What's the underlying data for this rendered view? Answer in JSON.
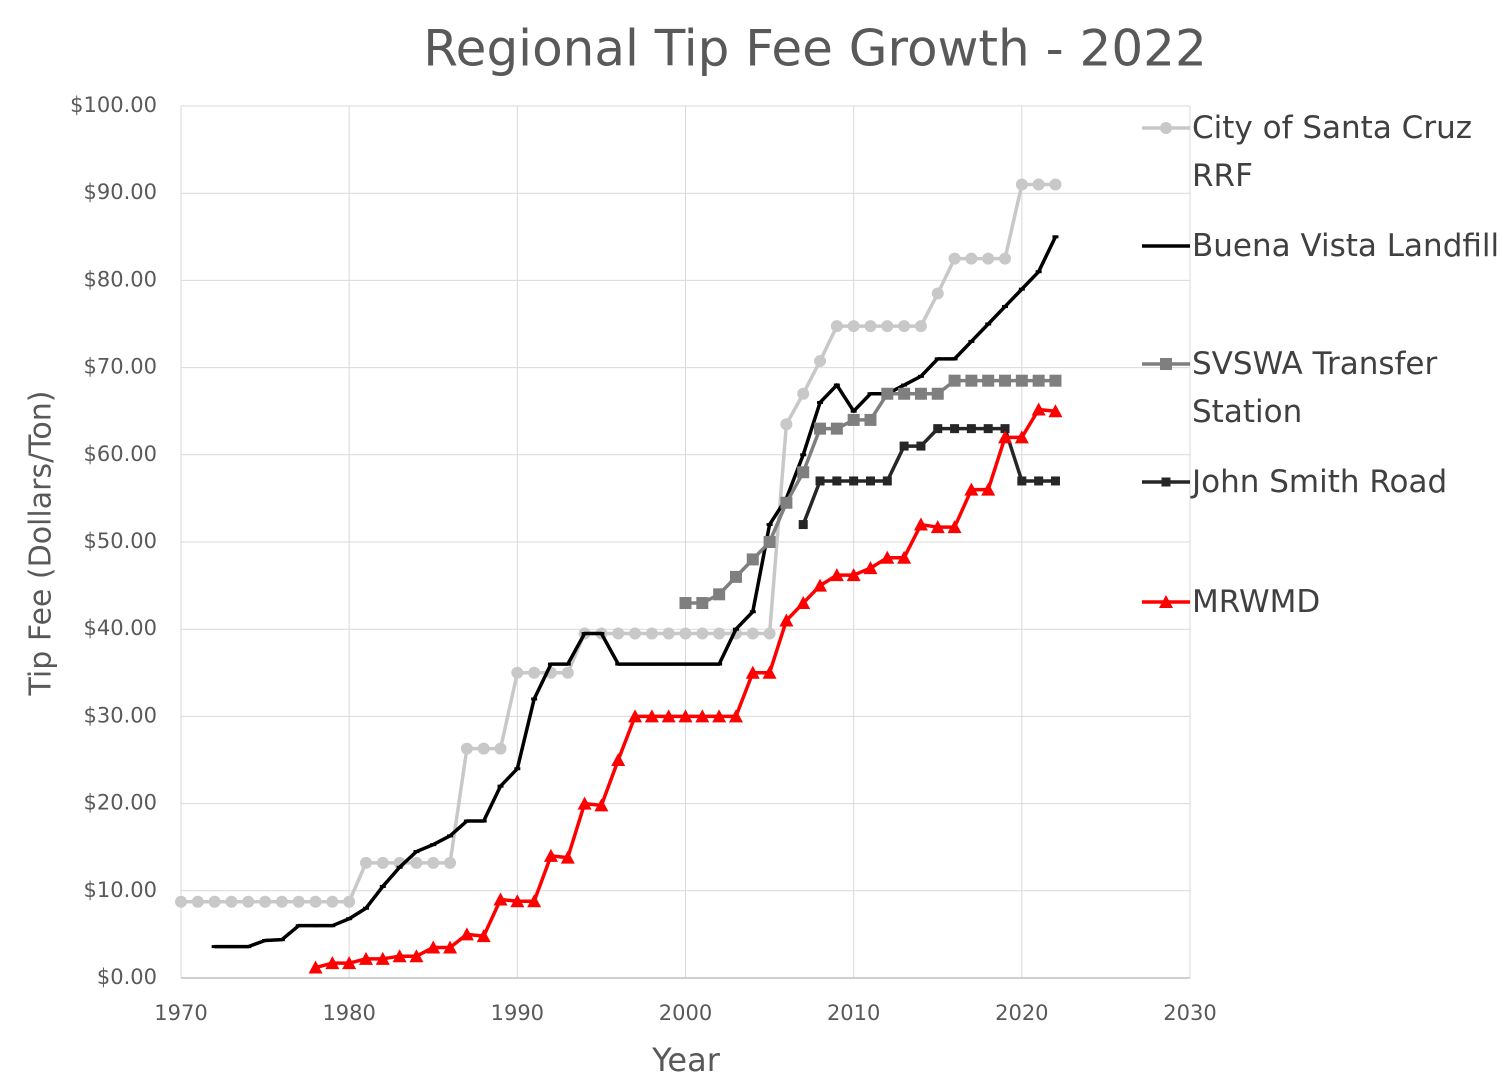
{
  "chart_data": {
    "type": "line",
    "title": "Regional Tip Fee Growth - 2022",
    "xlabel": "Year",
    "ylabel": "Tip Fee (Dollars/Ton)",
    "xlim": [
      1970,
      2030
    ],
    "xticks": [
      1970,
      1980,
      1990,
      2000,
      2010,
      2020,
      2030
    ],
    "ylim": [
      0,
      100
    ],
    "yticks": [
      {
        "value": 0,
        "label": "$0.00"
      },
      {
        "value": 10,
        "label": "$10.00"
      },
      {
        "value": 20,
        "label": "$20.00"
      },
      {
        "value": 30,
        "label": "$30.00"
      },
      {
        "value": 40,
        "label": "$40.00"
      },
      {
        "value": 50,
        "label": "$50.00"
      },
      {
        "value": 60,
        "label": "$60.00"
      },
      {
        "value": 70,
        "label": "$70.00"
      },
      {
        "value": 80,
        "label": "$80.00"
      },
      {
        "value": 90,
        "label": "$90.00"
      },
      {
        "value": 100,
        "label": "$100.00"
      }
    ],
    "grid": true,
    "legend": "right",
    "series": [
      {
        "name": "City of Santa Cruz RRF",
        "color": "#c8c8c8",
        "marker": "circle",
        "x": [
          1970,
          1971,
          1972,
          1973,
          1974,
          1975,
          1976,
          1977,
          1978,
          1979,
          1980,
          1981,
          1982,
          1983,
          1984,
          1985,
          1986,
          1987,
          1988,
          1989,
          1990,
          1991,
          1992,
          1993,
          1994,
          1995,
          1996,
          1997,
          1998,
          1999,
          2000,
          2001,
          2002,
          2003,
          2004,
          2005,
          2006,
          2007,
          2008,
          2009,
          2010,
          2011,
          2012,
          2013,
          2014,
          2015,
          2016,
          2017,
          2018,
          2019,
          2020,
          2021,
          2022
        ],
        "values": [
          8.75,
          8.75,
          8.75,
          8.75,
          8.75,
          8.75,
          8.75,
          8.75,
          8.75,
          8.75,
          8.75,
          13.2,
          13.2,
          13.2,
          13.2,
          13.2,
          13.2,
          26.3,
          26.3,
          26.3,
          35,
          35,
          35,
          35,
          39.5,
          39.5,
          39.5,
          39.5,
          39.5,
          39.5,
          39.5,
          39.5,
          39.5,
          39.5,
          39.5,
          39.5,
          63.5,
          67,
          70.75,
          74.75,
          74.75,
          74.75,
          74.75,
          74.75,
          74.75,
          78.5,
          82.5,
          82.5,
          82.5,
          82.5,
          91,
          91,
          91
        ]
      },
      {
        "name": "Buena Vista Landfill",
        "color": "#000000",
        "marker": "dash",
        "x": [
          1972,
          1973,
          1974,
          1975,
          1976,
          1977,
          1978,
          1979,
          1980,
          1981,
          1982,
          1983,
          1984,
          1985,
          1986,
          1987,
          1988,
          1989,
          1990,
          1991,
          1992,
          1993,
          1994,
          1995,
          1996,
          1997,
          1998,
          1999,
          2000,
          2001,
          2002,
          2003,
          2004,
          2005,
          2006,
          2007,
          2008,
          2009,
          2010,
          2011,
          2012,
          2013,
          2014,
          2015,
          2016,
          2017,
          2018,
          2019,
          2020,
          2021,
          2022
        ],
        "values": [
          3.6,
          3.6,
          3.6,
          4.3,
          4.4,
          6,
          6,
          6,
          6.8,
          8,
          10.5,
          12.7,
          14.5,
          15.3,
          16.3,
          18,
          18,
          22,
          24,
          32,
          36,
          36,
          39.5,
          39.5,
          36,
          36,
          36,
          36,
          36,
          36,
          36,
          40,
          42,
          52,
          55,
          60,
          66,
          68,
          65,
          67,
          67,
          68,
          69,
          71,
          71,
          73,
          75,
          77,
          79,
          81,
          85
        ]
      },
      {
        "name": "SVSWA Transfer Station",
        "color": "#7f7f7f",
        "marker": "square",
        "x": [
          2000,
          2001,
          2002,
          2003,
          2004,
          2005,
          2006,
          2007,
          2008,
          2009,
          2010,
          2011,
          2012,
          2013,
          2014,
          2015,
          2016,
          2017,
          2018,
          2019,
          2020,
          2021,
          2022
        ],
        "values": [
          43,
          43,
          44,
          46,
          48,
          50,
          54.5,
          58,
          63,
          63,
          64,
          64,
          67,
          67,
          67,
          67,
          68.5,
          68.5,
          68.5,
          68.5,
          68.5,
          68.5,
          68.5
        ]
      },
      {
        "name": "John Smith Road",
        "color": "#262626",
        "marker": "smallsquare",
        "x": [
          2007,
          2008,
          2009,
          2010,
          2011,
          2012,
          2013,
          2014,
          2015,
          2016,
          2017,
          2018,
          2019,
          2020,
          2021,
          2022
        ],
        "values": [
          52,
          57,
          57,
          57,
          57,
          57,
          61,
          61,
          63,
          63,
          63,
          63,
          63,
          57,
          57,
          57
        ]
      },
      {
        "name": "MRWMD",
        "color": "#ff0000",
        "marker": "triangle",
        "x": [
          1978,
          1979,
          1980,
          1981,
          1982,
          1983,
          1984,
          1985,
          1986,
          1987,
          1988,
          1989,
          1990,
          1991,
          1992,
          1993,
          1994,
          1995,
          1996,
          1997,
          1998,
          1999,
          2000,
          2001,
          2002,
          2003,
          2004,
          2005,
          2006,
          2007,
          2008,
          2009,
          2010,
          2011,
          2012,
          2013,
          2014,
          2015,
          2016,
          2017,
          2018,
          2019,
          2020,
          2021,
          2022
        ],
        "values": [
          1.2,
          1.7,
          1.7,
          2.2,
          2.2,
          2.5,
          2.5,
          3.5,
          3.5,
          5,
          4.8,
          9,
          8.8,
          8.8,
          14,
          13.8,
          20,
          19.8,
          25,
          30,
          30,
          30,
          30,
          30,
          30,
          30,
          35,
          35,
          41,
          43,
          45,
          46.2,
          46.2,
          47,
          48.2,
          48.2,
          52,
          51.7,
          51.7,
          56,
          56,
          62,
          62,
          65.2,
          65
        ]
      }
    ]
  }
}
